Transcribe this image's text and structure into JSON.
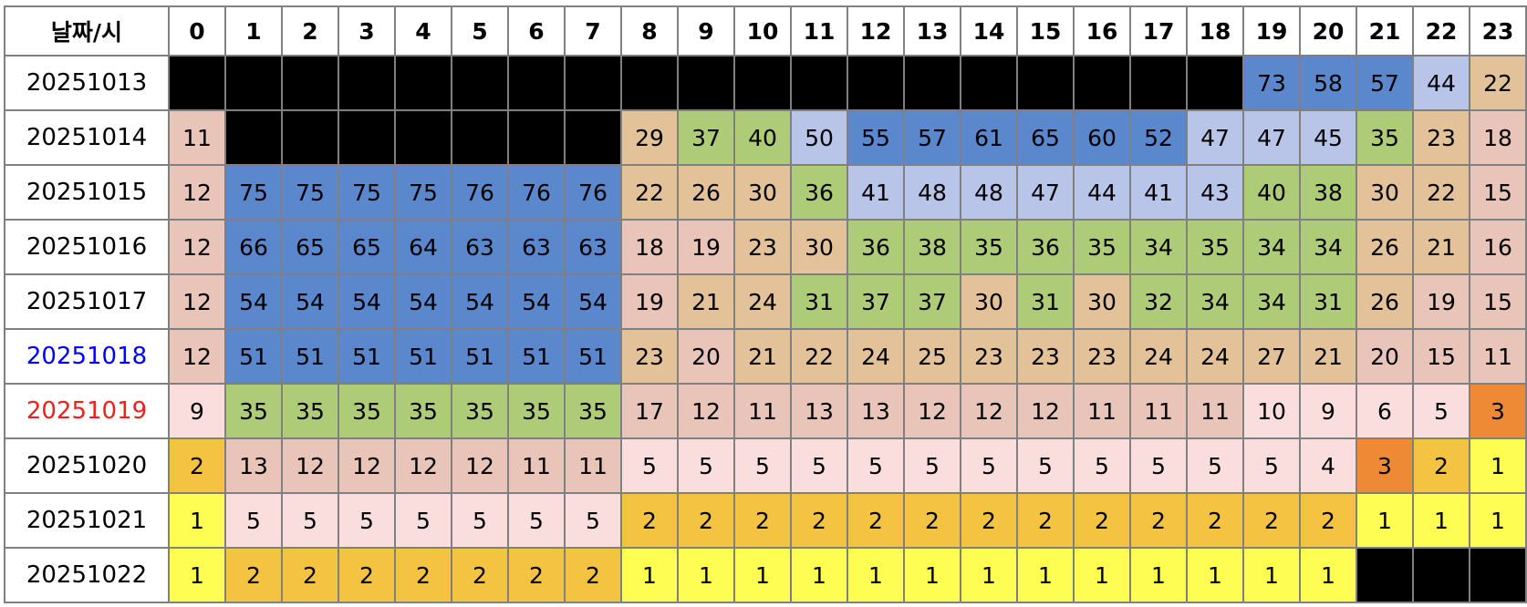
{
  "chart_data": {
    "type": "heatmap",
    "corner_label": "날짜/시",
    "hours": [
      "0",
      "1",
      "2",
      "3",
      "4",
      "5",
      "6",
      "7",
      "8",
      "9",
      "10",
      "11",
      "12",
      "13",
      "14",
      "15",
      "16",
      "17",
      "18",
      "19",
      "20",
      "21",
      "22",
      "23"
    ],
    "rows": [
      {
        "date": "20251013",
        "date_color": "#000000",
        "values": [
          null,
          null,
          null,
          null,
          null,
          null,
          null,
          null,
          null,
          null,
          null,
          null,
          null,
          null,
          null,
          null,
          null,
          null,
          null,
          73,
          58,
          57,
          44,
          22
        ]
      },
      {
        "date": "20251014",
        "date_color": "#000000",
        "values": [
          11,
          null,
          null,
          null,
          null,
          null,
          null,
          null,
          29,
          37,
          40,
          50,
          55,
          57,
          61,
          65,
          60,
          52,
          47,
          47,
          45,
          35,
          23,
          18
        ]
      },
      {
        "date": "20251015",
        "date_color": "#000000",
        "values": [
          12,
          75,
          75,
          75,
          75,
          76,
          76,
          76,
          22,
          26,
          30,
          36,
          41,
          48,
          48,
          47,
          44,
          41,
          43,
          40,
          38,
          30,
          22,
          15
        ]
      },
      {
        "date": "20251016",
        "date_color": "#000000",
        "values": [
          12,
          66,
          65,
          65,
          64,
          63,
          63,
          63,
          18,
          19,
          23,
          30,
          36,
          38,
          35,
          36,
          35,
          34,
          35,
          34,
          34,
          26,
          21,
          16
        ]
      },
      {
        "date": "20251017",
        "date_color": "#000000",
        "values": [
          12,
          54,
          54,
          54,
          54,
          54,
          54,
          54,
          19,
          21,
          24,
          31,
          37,
          37,
          30,
          31,
          30,
          32,
          34,
          34,
          31,
          26,
          19,
          15
        ]
      },
      {
        "date": "20251018",
        "date_color": "#0000ff",
        "values": [
          12,
          51,
          51,
          51,
          51,
          51,
          51,
          51,
          23,
          20,
          21,
          22,
          24,
          25,
          23,
          23,
          23,
          24,
          24,
          27,
          21,
          20,
          15,
          11
        ]
      },
      {
        "date": "20251019",
        "date_color": "#e8231f",
        "values": [
          9,
          35,
          35,
          35,
          35,
          35,
          35,
          35,
          17,
          12,
          11,
          13,
          13,
          12,
          12,
          12,
          11,
          11,
          11,
          10,
          9,
          6,
          5,
          3
        ]
      },
      {
        "date": "20251020",
        "date_color": "#000000",
        "values": [
          2,
          13,
          12,
          12,
          12,
          12,
          11,
          11,
          5,
          5,
          5,
          5,
          5,
          5,
          5,
          5,
          5,
          5,
          5,
          5,
          4,
          3,
          2,
          1
        ]
      },
      {
        "date": "20251021",
        "date_color": "#000000",
        "values": [
          1,
          5,
          5,
          5,
          5,
          5,
          5,
          5,
          2,
          2,
          2,
          2,
          2,
          2,
          2,
          2,
          2,
          2,
          2,
          2,
          2,
          1,
          1,
          1
        ]
      },
      {
        "date": "20251022",
        "date_color": "#000000",
        "values": [
          1,
          2,
          2,
          2,
          2,
          2,
          2,
          2,
          1,
          1,
          1,
          1,
          1,
          1,
          1,
          1,
          1,
          1,
          1,
          1,
          1,
          null,
          null,
          null
        ]
      }
    ],
    "color_scale": [
      {
        "min": 51,
        "color": "#5b87cc"
      },
      {
        "min": 41,
        "color": "#b9c5e8"
      },
      {
        "min": 31,
        "color": "#aecb78"
      },
      {
        "min": 21,
        "color": "#e3c29a"
      },
      {
        "min": 11,
        "color": "#e9c5b9"
      },
      {
        "min": 4,
        "color": "#f9dedd"
      },
      {
        "min": 3,
        "color": "#ee8a35"
      },
      {
        "min": 2,
        "color": "#f5c342"
      },
      {
        "min": 1,
        "color": "#fdfd54"
      }
    ],
    "missing_color": "#000000"
  }
}
